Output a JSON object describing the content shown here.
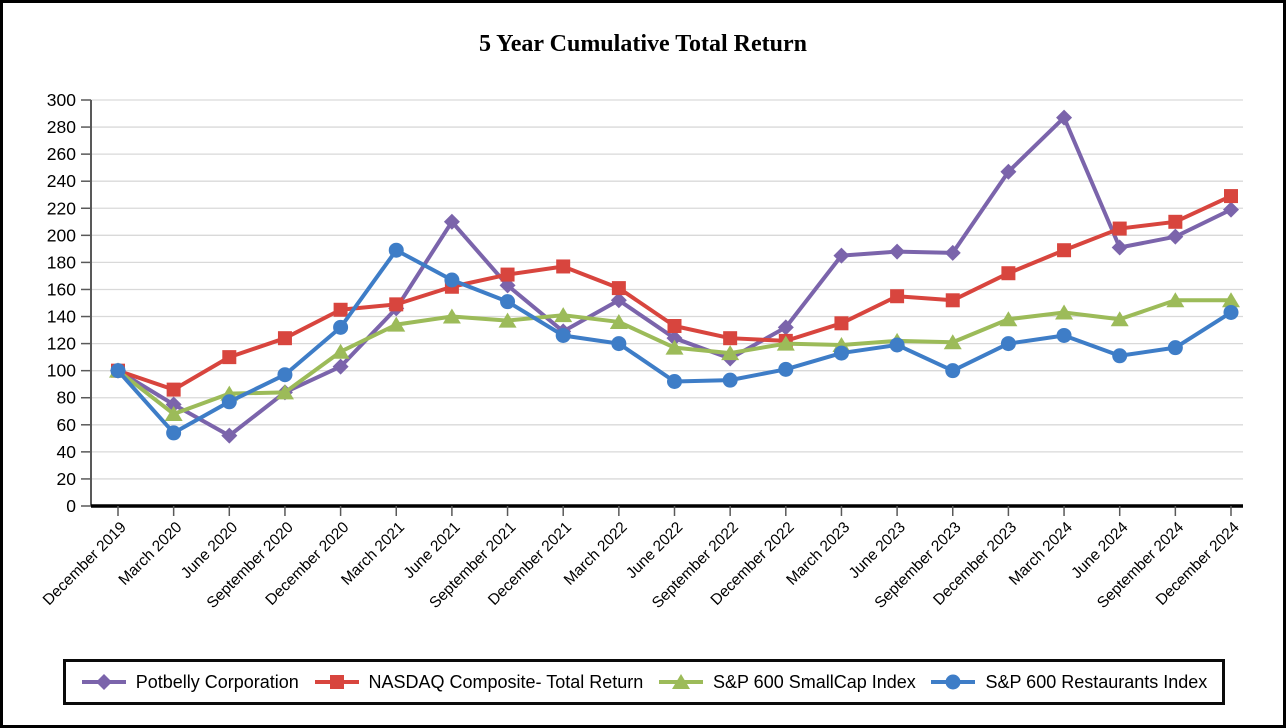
{
  "chart_data": {
    "type": "line",
    "title": "5 Year Cumulative Total Return",
    "categories": [
      "December 2019",
      "March 2020",
      "June 2020",
      "September 2020",
      "December 2020",
      "March 2021",
      "June 2021",
      "September 2021",
      "December 2021",
      "March 2022",
      "June 2022",
      "September 2022",
      "December 2022",
      "March 2023",
      "June 2023",
      "September 2023",
      "December 2023",
      "March 2024",
      "June 2024",
      "September 2024",
      "December 2024"
    ],
    "series": [
      {
        "name": "Potbelly Corporation",
        "marker": "diamond",
        "color": "#7B64AB",
        "values": [
          100,
          75,
          52,
          84,
          103,
          146,
          210,
          163,
          129,
          152,
          124,
          109,
          132,
          185,
          188,
          187,
          247,
          287,
          191,
          199,
          219
        ]
      },
      {
        "name": "NASDAQ Composite- Total Return",
        "marker": "square",
        "color": "#D8453E",
        "values": [
          100,
          86,
          110,
          124,
          145,
          149,
          162,
          171,
          177,
          161,
          133,
          124,
          122,
          135,
          155,
          152,
          172,
          189,
          205,
          210,
          229
        ]
      },
      {
        "name": "S&P 600 SmallCap Index",
        "marker": "triangle",
        "color": "#9CBB59",
        "values": [
          100,
          68,
          83,
          84,
          114,
          134,
          140,
          137,
          141,
          136,
          117,
          113,
          120,
          119,
          122,
          121,
          138,
          143,
          138,
          152,
          152
        ]
      },
      {
        "name": "S&P 600 Restaurants Index",
        "marker": "circle",
        "color": "#3E7DC7",
        "values": [
          100,
          54,
          77,
          97,
          132,
          189,
          167,
          151,
          126,
          120,
          92,
          93,
          101,
          113,
          119,
          100,
          120,
          126,
          111,
          117,
          143
        ]
      }
    ],
    "ylim": [
      0,
      300
    ],
    "ytick_step": 20,
    "grid": "horizontal",
    "legend_position": "bottom",
    "xlabel": "",
    "ylabel": ""
  }
}
